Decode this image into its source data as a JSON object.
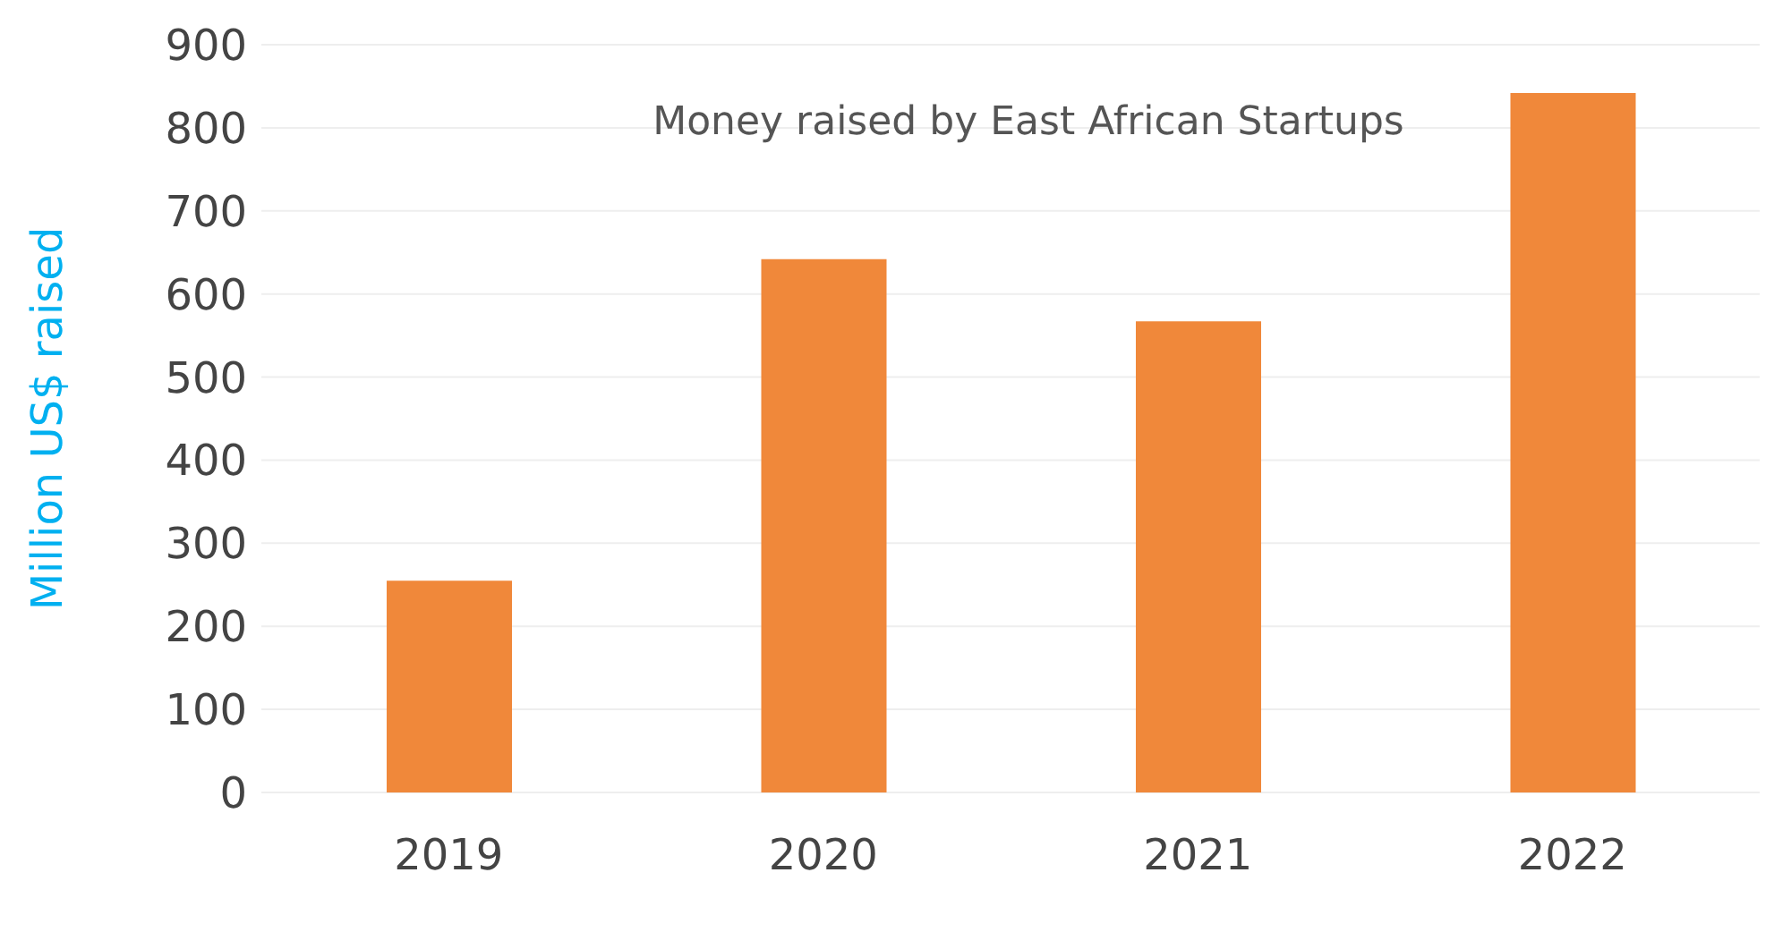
{
  "chart_data": {
    "type": "bar",
    "title": "Money raised by East African Startups",
    "ylabel": "Million US$ raised",
    "categories": [
      "2019",
      "2020",
      "2021",
      "2022"
    ],
    "values": [
      255,
      642,
      567,
      842
    ],
    "color": "#f0883a",
    "ylim": [
      0,
      900
    ],
    "yticks": [
      0,
      100,
      200,
      300,
      400,
      500,
      600,
      700,
      800,
      900
    ],
    "grid": "y"
  }
}
